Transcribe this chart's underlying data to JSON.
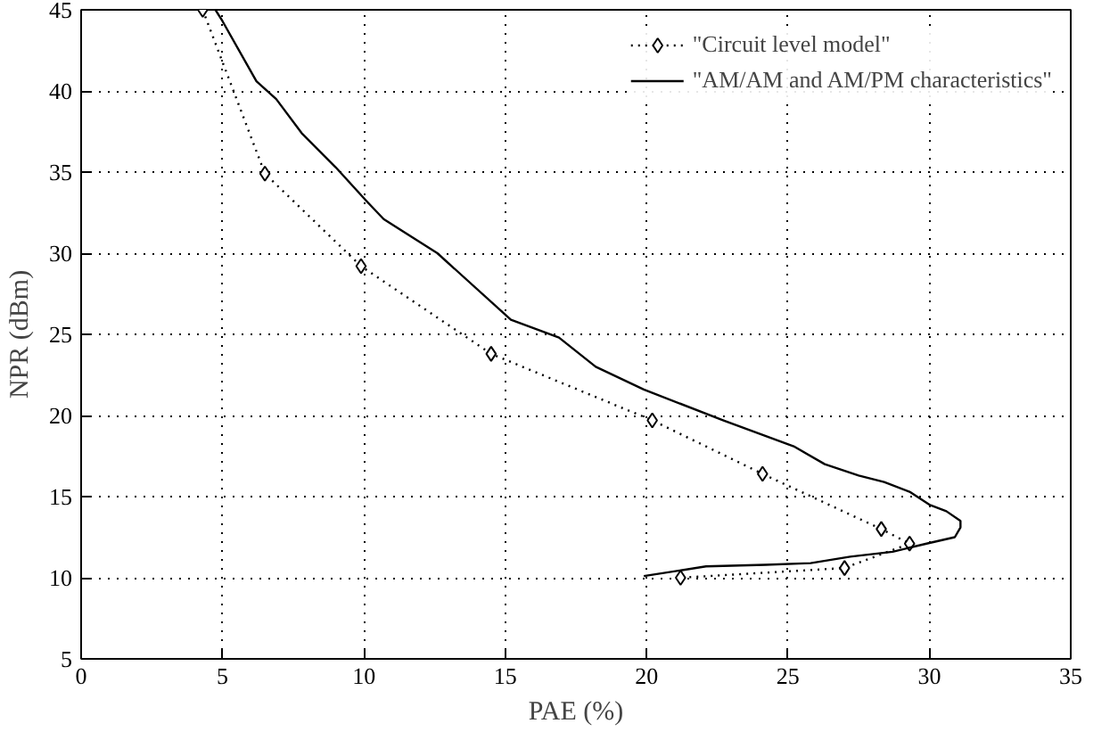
{
  "chart_data": {
    "type": "line",
    "xlabel": "PAE (%)",
    "ylabel": "NPR (dBm)",
    "xlim": [
      0,
      35
    ],
    "ylim": [
      5,
      45
    ],
    "xticks": [
      0,
      5,
      10,
      15,
      20,
      25,
      30,
      35
    ],
    "yticks": [
      5,
      10,
      15,
      20,
      25,
      30,
      35,
      40,
      45
    ],
    "grid": true,
    "legend": "top right",
    "series": [
      {
        "name": "\"Circuit level model\"",
        "color": "#000000",
        "marker": "diamond",
        "line_style": "dotted",
        "x": [
          4.3,
          6.5,
          9.9,
          14.5,
          20.2,
          24.1,
          28.3,
          29.3,
          27.0,
          21.2
        ],
        "values": [
          45,
          34.9,
          29.2,
          23.8,
          19.7,
          16.4,
          13.0,
          12.1,
          10.6,
          10.0
        ]
      },
      {
        "name": "\"AM/AM and AM/PM characteristics\"",
        "color": "#000000",
        "marker": "none",
        "line_style": "solid",
        "x": [
          4.75,
          5.0,
          6.2,
          6.9,
          7.8,
          9.0,
          10.1,
          10.7,
          12.6,
          15.2,
          16.9,
          18.2,
          19.9,
          22.7,
          25.2,
          26.3,
          27.5,
          28.4,
          29.3,
          30.0,
          30.6,
          31.1,
          31.1,
          30.9,
          29.9,
          28.7,
          27.2,
          25.8,
          24.2,
          22.1,
          19.9
        ],
        "values": [
          45,
          44.3,
          40.6,
          39.5,
          37.4,
          35.3,
          33.2,
          32.1,
          30.0,
          25.9,
          24.8,
          23.0,
          21.6,
          19.7,
          18.1,
          17.0,
          16.3,
          15.9,
          15.3,
          14.5,
          14.1,
          13.5,
          13.1,
          12.5,
          12.1,
          11.6,
          11.3,
          10.9,
          10.8,
          10.7,
          10.1
        ]
      }
    ]
  }
}
